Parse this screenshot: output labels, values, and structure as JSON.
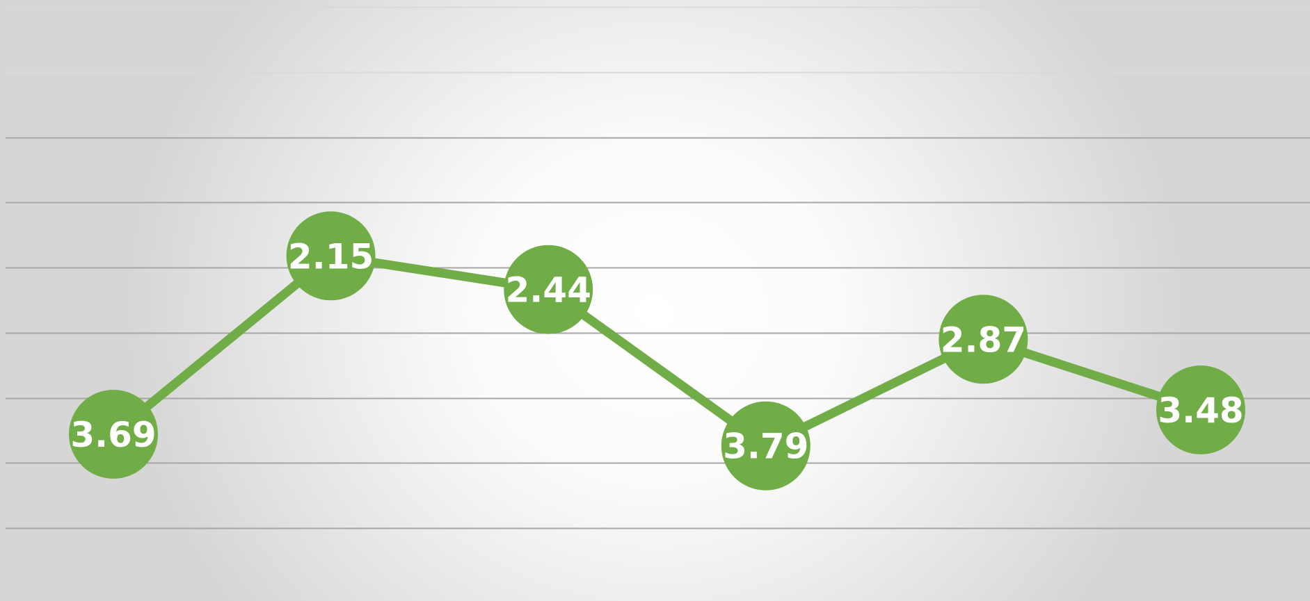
{
  "chart_data": {
    "type": "line",
    "categories": [
      "",
      "",
      "",
      "",
      "",
      ""
    ],
    "series": [
      {
        "values": [
          3.69,
          2.15,
          2.44,
          3.79,
          2.87,
          3.48
        ],
        "color": "#70ad47",
        "marker": "circle",
        "data_labels": true,
        "data_label_color": "#ffffff",
        "y_axis_inverted": true
      }
    ],
    "title": "",
    "xlabel": "",
    "ylabel": "",
    "ylim": [
      0,
      4.5
    ],
    "grid": true,
    "legend": "none"
  }
}
